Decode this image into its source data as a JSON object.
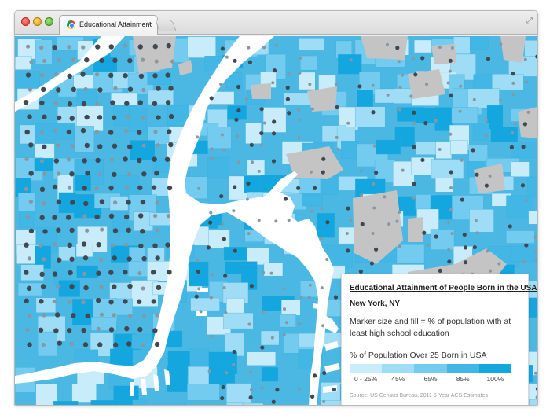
{
  "window": {
    "tab_title": "Educational Attainment",
    "tab_close": "×"
  },
  "legend": {
    "title": "Educational Attainment of People Born in the USA",
    "location": "New York, NY",
    "description": "Marker size and fill = % of population with at least high school education",
    "scale_title": "% of Population Over 25 Born in USA",
    "scale": [
      {
        "label": "0 - 25%",
        "color": "#c9ecfb"
      },
      {
        "label": "45%",
        "color": "#9fdcf6"
      },
      {
        "label": "65%",
        "color": "#73cbef"
      },
      {
        "label": "85%",
        "color": "#42b7e6"
      },
      {
        "label": "100%",
        "color": "#14a6de"
      }
    ],
    "source_prefix": "Source:",
    "source_text": "US Census Bureau, 2011 5-Year ACS Estimates"
  },
  "map": {
    "water_color": "#ffffff",
    "park_color": "#c4c4c4",
    "marker_dark": "#404952",
    "marker_light": "#8a96a0"
  }
}
